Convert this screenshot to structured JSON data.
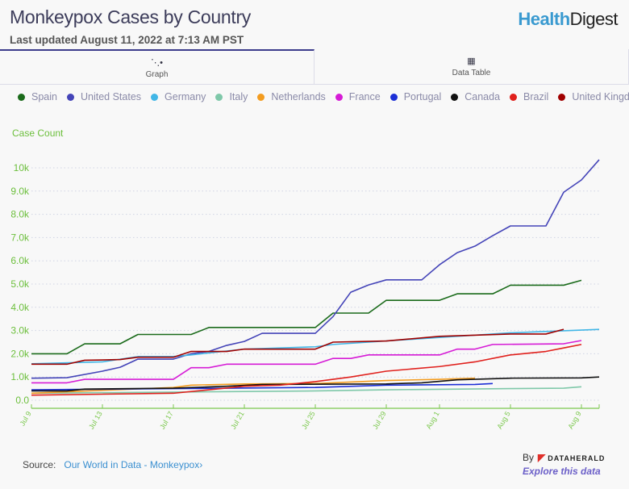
{
  "header": {
    "title": "Monkeypox Cases by Country",
    "subtitle": "Last updated August 11, 2022 at 7:13 AM PST",
    "logo_part1": "Health",
    "logo_part2": "Digest"
  },
  "tabs": [
    {
      "label": "Graph",
      "icon": "line-chart-icon",
      "active": true
    },
    {
      "label": "Data Table",
      "icon": "table-icon",
      "active": false
    }
  ],
  "footer": {
    "source_label": "Source:",
    "source_link": "Our World in Data - Monkeypox",
    "by_label": "By",
    "brand": "DATAHERALD",
    "explore": "Explore this data"
  },
  "chart_data": {
    "type": "line",
    "ylabel": "Case Count",
    "ylim": [
      0,
      10000
    ],
    "yticks": [
      {
        "v": 0,
        "label": "0.0"
      },
      {
        "v": 1000,
        "label": "1.0k"
      },
      {
        "v": 2000,
        "label": "2.0k"
      },
      {
        "v": 3000,
        "label": "3.0k"
      },
      {
        "v": 4000,
        "label": "4.0k"
      },
      {
        "v": 5000,
        "label": "5.0k"
      },
      {
        "v": 6000,
        "label": "6.0k"
      },
      {
        "v": 7000,
        "label": "7.0k"
      },
      {
        "v": 8000,
        "label": "8.0k"
      },
      {
        "v": 9000,
        "label": "9.0k"
      },
      {
        "v": 10000,
        "label": "10k"
      }
    ],
    "xrange": [
      "Jul 9",
      "Aug 10"
    ],
    "xticks": [
      "Jul 9",
      "Jul 13",
      "Jul 17",
      "Jul 21",
      "Jul 25",
      "Jul 29",
      "Aug 1",
      "Aug 5",
      "Aug 9"
    ],
    "grid": "horizontal dotted",
    "legend": "top",
    "series": [
      {
        "name": "Spain",
        "color": "#1b6b1b",
        "points": [
          [
            "Jul 9",
            2000
          ],
          [
            "Jul 11",
            2000
          ],
          [
            "Jul 12",
            2430
          ],
          [
            "Jul 14",
            2430
          ],
          [
            "Jul 15",
            2830
          ],
          [
            "Jul 18",
            2830
          ],
          [
            "Jul 19",
            3130
          ],
          [
            "Jul 25",
            3130
          ],
          [
            "Jul 26",
            3750
          ],
          [
            "Jul 28",
            3750
          ],
          [
            "Jul 29",
            4300
          ],
          [
            "Aug 1",
            4300
          ],
          [
            "Aug 2",
            4580
          ],
          [
            "Aug 4",
            4580
          ],
          [
            "Aug 5",
            4950
          ],
          [
            "Aug 8",
            4950
          ],
          [
            "Aug 9",
            5160
          ]
        ]
      },
      {
        "name": "United States",
        "color": "#4444b8",
        "points": [
          [
            "Jul 9",
            950
          ],
          [
            "Jul 11",
            970
          ],
          [
            "Jul 13",
            1250
          ],
          [
            "Jul 14",
            1420
          ],
          [
            "Jul 15",
            1770
          ],
          [
            "Jul 17",
            1770
          ],
          [
            "Jul 18",
            2000
          ],
          [
            "Jul 19",
            2100
          ],
          [
            "Jul 20",
            2360
          ],
          [
            "Jul 21",
            2530
          ],
          [
            "Jul 22",
            2880
          ],
          [
            "Jul 25",
            2880
          ],
          [
            "Jul 26",
            3600
          ],
          [
            "Jul 27",
            4650
          ],
          [
            "Jul 28",
            4960
          ],
          [
            "Jul 29",
            5180
          ],
          [
            "Jul 31",
            5180
          ],
          [
            "Aug 1",
            5830
          ],
          [
            "Aug 2",
            6350
          ],
          [
            "Aug 3",
            6630
          ],
          [
            "Aug 4",
            7080
          ],
          [
            "Aug 5",
            7500
          ],
          [
            "Aug 7",
            7500
          ],
          [
            "Aug 8",
            8950
          ],
          [
            "Aug 9",
            9480
          ],
          [
            "Aug 10",
            10350
          ]
        ]
      },
      {
        "name": "Germany",
        "color": "#41b6e6",
        "points": [
          [
            "Jul 9",
            1570
          ],
          [
            "Jul 13",
            1650
          ],
          [
            "Jul 15",
            1880
          ],
          [
            "Jul 17",
            1880
          ],
          [
            "Jul 18",
            1950
          ],
          [
            "Jul 21",
            2200
          ],
          [
            "Jul 25",
            2300
          ],
          [
            "Jul 26",
            2400
          ],
          [
            "Aug 1",
            2700
          ],
          [
            "Aug 5",
            2900
          ],
          [
            "Aug 10",
            3050
          ]
        ]
      },
      {
        "name": "Italy",
        "color": "#7fc8a9",
        "points": [
          [
            "Jul 9",
            300
          ],
          [
            "Jul 17",
            350
          ],
          [
            "Jul 25",
            400
          ],
          [
            "Jul 29",
            450
          ],
          [
            "Aug 5",
            500
          ],
          [
            "Aug 8",
            520
          ],
          [
            "Aug 9",
            580
          ]
        ]
      },
      {
        "name": "Netherlands",
        "color": "#f39c1f",
        "points": [
          [
            "Jul 9",
            300
          ],
          [
            "Jul 17",
            550
          ],
          [
            "Jul 18",
            650
          ],
          [
            "Jul 21",
            700
          ],
          [
            "Jul 25",
            720
          ],
          [
            "Jul 29",
            850
          ],
          [
            "Aug 1",
            900
          ],
          [
            "Aug 3",
            950
          ]
        ]
      },
      {
        "name": "France",
        "color": "#d61cd6",
        "points": [
          [
            "Jul 9",
            750
          ],
          [
            "Jul 11",
            750
          ],
          [
            "Jul 12",
            900
          ],
          [
            "Jul 17",
            900
          ],
          [
            "Jul 18",
            1400
          ],
          [
            "Jul 19",
            1400
          ],
          [
            "Jul 20",
            1550
          ],
          [
            "Jul 25",
            1550
          ],
          [
            "Jul 26",
            1800
          ],
          [
            "Jul 27",
            1800
          ],
          [
            "Jul 28",
            1950
          ],
          [
            "Aug 1",
            1950
          ],
          [
            "Aug 2",
            2200
          ],
          [
            "Aug 3",
            2200
          ],
          [
            "Aug 4",
            2400
          ],
          [
            "Aug 8",
            2430
          ],
          [
            "Aug 9",
            2570
          ]
        ]
      },
      {
        "name": "Portugal",
        "color": "#1c2fd6",
        "points": [
          [
            "Jul 9",
            450
          ],
          [
            "Jul 17",
            500
          ],
          [
            "Jul 25",
            550
          ],
          [
            "Jul 29",
            650
          ],
          [
            "Aug 3",
            680
          ],
          [
            "Aug 4",
            720
          ]
        ]
      },
      {
        "name": "Canada",
        "color": "#111111",
        "points": [
          [
            "Jul 9",
            400
          ],
          [
            "Jul 11",
            400
          ],
          [
            "Jul 12",
            480
          ],
          [
            "Jul 17",
            520
          ],
          [
            "Jul 20",
            600
          ],
          [
            "Jul 22",
            680
          ],
          [
            "Jul 29",
            700
          ],
          [
            "Jul 31",
            750
          ],
          [
            "Aug 2",
            880
          ],
          [
            "Aug 5",
            950
          ],
          [
            "Aug 9",
            960
          ],
          [
            "Aug 10",
            1000
          ]
        ]
      },
      {
        "name": "Brazil",
        "color": "#e0201c",
        "points": [
          [
            "Jul 9",
            220
          ],
          [
            "Jul 17",
            300
          ],
          [
            "Jul 19",
            450
          ],
          [
            "Jul 21",
            600
          ],
          [
            "Jul 23",
            650
          ],
          [
            "Jul 25",
            800
          ],
          [
            "Jul 27",
            1000
          ],
          [
            "Jul 29",
            1250
          ],
          [
            "Aug 1",
            1450
          ],
          [
            "Aug 3",
            1650
          ],
          [
            "Aug 5",
            1950
          ],
          [
            "Aug 7",
            2100
          ],
          [
            "Aug 8",
            2250
          ],
          [
            "Aug 9",
            2400
          ]
        ]
      },
      {
        "name": "United Kingdom",
        "color": "#a00000",
        "points": [
          [
            "Jul 9",
            1550
          ],
          [
            "Jul 11",
            1550
          ],
          [
            "Jul 12",
            1720
          ],
          [
            "Jul 14",
            1750
          ],
          [
            "Jul 15",
            1850
          ],
          [
            "Jul 17",
            1850
          ],
          [
            "Jul 18",
            2100
          ],
          [
            "Jul 20",
            2100
          ],
          [
            "Jul 21",
            2200
          ],
          [
            "Jul 25",
            2200
          ],
          [
            "Jul 26",
            2500
          ],
          [
            "Jul 29",
            2550
          ],
          [
            "Aug 1",
            2750
          ],
          [
            "Aug 5",
            2850
          ],
          [
            "Aug 7",
            2850
          ],
          [
            "Aug 8",
            3050
          ]
        ]
      }
    ]
  }
}
